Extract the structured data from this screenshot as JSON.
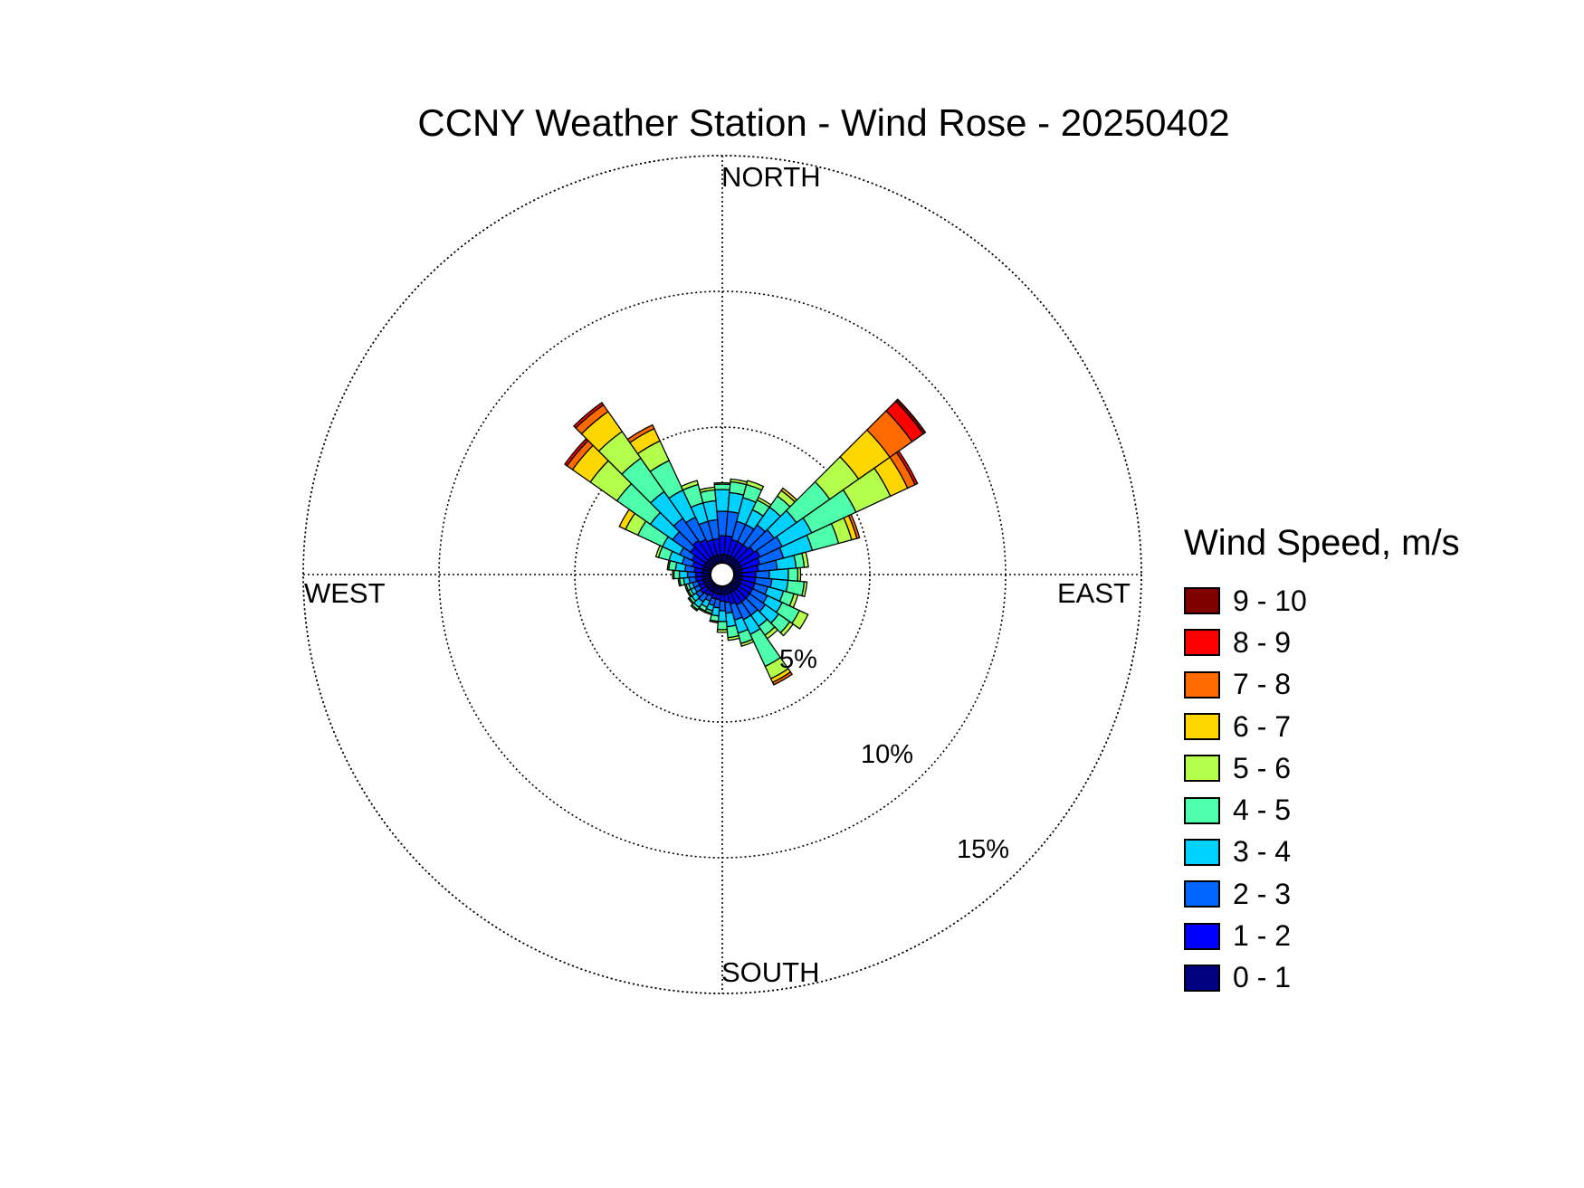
{
  "chart_data": {
    "type": "wind_rose",
    "title": "CCNY Weather Station - Wind Rose - 20250402",
    "direction_labels": {
      "north": "NORTH",
      "east": "EAST",
      "south": "SOUTH",
      "west": "WEST"
    },
    "ring_labels": [
      "5%",
      "10%",
      "15%"
    ],
    "ring_values": [
      5,
      10,
      15
    ],
    "legend_title": "Wind Speed, m/s",
    "speed_bins": [
      {
        "label": "0 - 1",
        "color": "#000080"
      },
      {
        "label": "1 - 2",
        "color": "#0000ff"
      },
      {
        "label": "2 - 3",
        "color": "#0066ff"
      },
      {
        "label": "3 - 4",
        "color": "#00d2ff"
      },
      {
        "label": "4 - 5",
        "color": "#4dffaa"
      },
      {
        "label": "5 - 6",
        "color": "#b4ff4b"
      },
      {
        "label": "6 - 7",
        "color": "#ffd700"
      },
      {
        "label": "7 - 8",
        "color": "#ff6a00"
      },
      {
        "label": "8 - 9",
        "color": "#ff0000"
      },
      {
        "label": "9 - 10",
        "color": "#800000"
      }
    ],
    "sector_width_deg": 10,
    "sectors": [
      {
        "direction_deg": 0,
        "cumulative_pct": [
          0.3,
          1.0,
          1.9,
          2.7,
          2.9,
          2.95
        ]
      },
      {
        "direction_deg": 10,
        "cumulative_pct": [
          0.3,
          1.0,
          1.9,
          2.6,
          3.0,
          3.1
        ]
      },
      {
        "direction_deg": 20,
        "cumulative_pct": [
          0.3,
          0.9,
          1.6,
          2.5,
          3.0,
          3.15
        ]
      },
      {
        "direction_deg": 30,
        "cumulative_pct": [
          0.3,
          0.9,
          1.6,
          2.2,
          2.6,
          2.7
        ]
      },
      {
        "direction_deg": 40,
        "cumulative_pct": [
          0.3,
          0.9,
          1.8,
          2.6,
          3.1,
          3.35,
          3.45
        ]
      },
      {
        "direction_deg": 50,
        "cumulative_pct": [
          0.3,
          1.0,
          1.9,
          2.9,
          4.4,
          5.7,
          7.1,
          8.1,
          8.6,
          8.7
        ]
      },
      {
        "direction_deg": 60,
        "cumulative_pct": [
          0.3,
          1.1,
          2.0,
          3.2,
          5.0,
          6.4,
          7.1,
          7.4,
          7.5
        ]
      },
      {
        "direction_deg": 70,
        "cumulative_pct": [
          0.3,
          1.0,
          1.9,
          3.0,
          4.0,
          4.5,
          4.7,
          4.8
        ]
      },
      {
        "direction_deg": 80,
        "cumulative_pct": [
          0.3,
          0.9,
          1.6,
          2.3,
          2.6,
          2.75
        ]
      },
      {
        "direction_deg": 90,
        "cumulative_pct": [
          0.3,
          0.8,
          1.3,
          2.0,
          2.35,
          2.45
        ]
      },
      {
        "direction_deg": 100,
        "cumulative_pct": [
          0.3,
          0.8,
          1.4,
          2.0,
          2.6,
          2.7
        ]
      },
      {
        "direction_deg": 110,
        "cumulative_pct": [
          0.3,
          0.8,
          1.3,
          1.9,
          2.3,
          2.45
        ]
      },
      {
        "direction_deg": 120,
        "cumulative_pct": [
          0.3,
          0.8,
          1.4,
          2.0,
          2.7,
          3.05
        ]
      },
      {
        "direction_deg": 130,
        "cumulative_pct": [
          0.3,
          0.8,
          1.5,
          2.1,
          2.6,
          2.75
        ]
      },
      {
        "direction_deg": 140,
        "cumulative_pct": [
          0.3,
          0.8,
          1.4,
          1.9,
          2.3,
          2.45
        ]
      },
      {
        "direction_deg": 150,
        "cumulative_pct": [
          0.3,
          0.8,
          1.4,
          2.0,
          3.3,
          3.8,
          3.95,
          4.05
        ]
      },
      {
        "direction_deg": 160,
        "cumulative_pct": [
          0.3,
          0.7,
          1.3,
          1.8,
          2.2,
          2.3
        ]
      },
      {
        "direction_deg": 170,
        "cumulative_pct": [
          0.3,
          0.6,
          1.0,
          1.5,
          1.9,
          2.0
        ]
      },
      {
        "direction_deg": 180,
        "cumulative_pct": [
          0.3,
          0.55,
          0.9,
          1.3,
          1.6,
          1.7
        ]
      },
      {
        "direction_deg": 190,
        "cumulative_pct": [
          0.3,
          0.5,
          0.8,
          1.1,
          1.3,
          1.35
        ]
      },
      {
        "direction_deg": 200,
        "cumulative_pct": [
          0.3,
          0.5,
          0.75,
          0.95,
          1.05,
          1.1
        ]
      },
      {
        "direction_deg": 210,
        "cumulative_pct": [
          0.3,
          0.45,
          0.65,
          0.9,
          1.05,
          1.1
        ]
      },
      {
        "direction_deg": 220,
        "cumulative_pct": [
          0.3,
          0.5,
          0.8,
          1.05,
          1.15,
          1.2
        ]
      },
      {
        "direction_deg": 230,
        "cumulative_pct": [
          0.3,
          0.55,
          0.75,
          0.95,
          1.05,
          1.1
        ]
      },
      {
        "direction_deg": 240,
        "cumulative_pct": [
          0.3,
          0.5,
          0.7,
          0.85,
          0.95,
          1.0
        ]
      },
      {
        "direction_deg": 250,
        "cumulative_pct": [
          0.3,
          0.5,
          0.7,
          0.85,
          0.95,
          1.0
        ]
      },
      {
        "direction_deg": 260,
        "cumulative_pct": [
          0.3,
          0.55,
          0.8,
          1.0,
          1.15,
          1.2
        ]
      },
      {
        "direction_deg": 270,
        "cumulative_pct": [
          0.3,
          0.55,
          0.85,
          1.15,
          1.35,
          1.4
        ]
      },
      {
        "direction_deg": 280,
        "cumulative_pct": [
          0.3,
          0.6,
          0.95,
          1.3,
          1.55,
          1.6
        ]
      },
      {
        "direction_deg": 290,
        "cumulative_pct": [
          0.3,
          0.7,
          1.1,
          1.6,
          2.0,
          2.1
        ]
      },
      {
        "direction_deg": 300,
        "cumulative_pct": [
          0.3,
          0.8,
          1.3,
          2.0,
          3.0,
          3.5,
          3.75
        ]
      },
      {
        "direction_deg": 310,
        "cumulative_pct": [
          0.3,
          1.0,
          1.8,
          2.8,
          4.3,
          5.5,
          6.3,
          6.55,
          6.65
        ]
      },
      {
        "direction_deg": 320,
        "cumulative_pct": [
          0.3,
          1.1,
          2.1,
          3.3,
          4.8,
          6.0,
          6.9,
          7.2,
          7.3
        ]
      },
      {
        "direction_deg": 330,
        "cumulative_pct": [
          0.3,
          1.0,
          1.9,
          3.0,
          4.2,
          5.0,
          5.5,
          5.65
        ]
      },
      {
        "direction_deg": 340,
        "cumulative_pct": [
          0.3,
          0.9,
          1.6,
          2.3,
          3.0,
          3.15
        ]
      },
      {
        "direction_deg": 350,
        "cumulative_pct": [
          0.3,
          0.9,
          1.6,
          2.3,
          2.7,
          2.8
        ]
      }
    ]
  }
}
